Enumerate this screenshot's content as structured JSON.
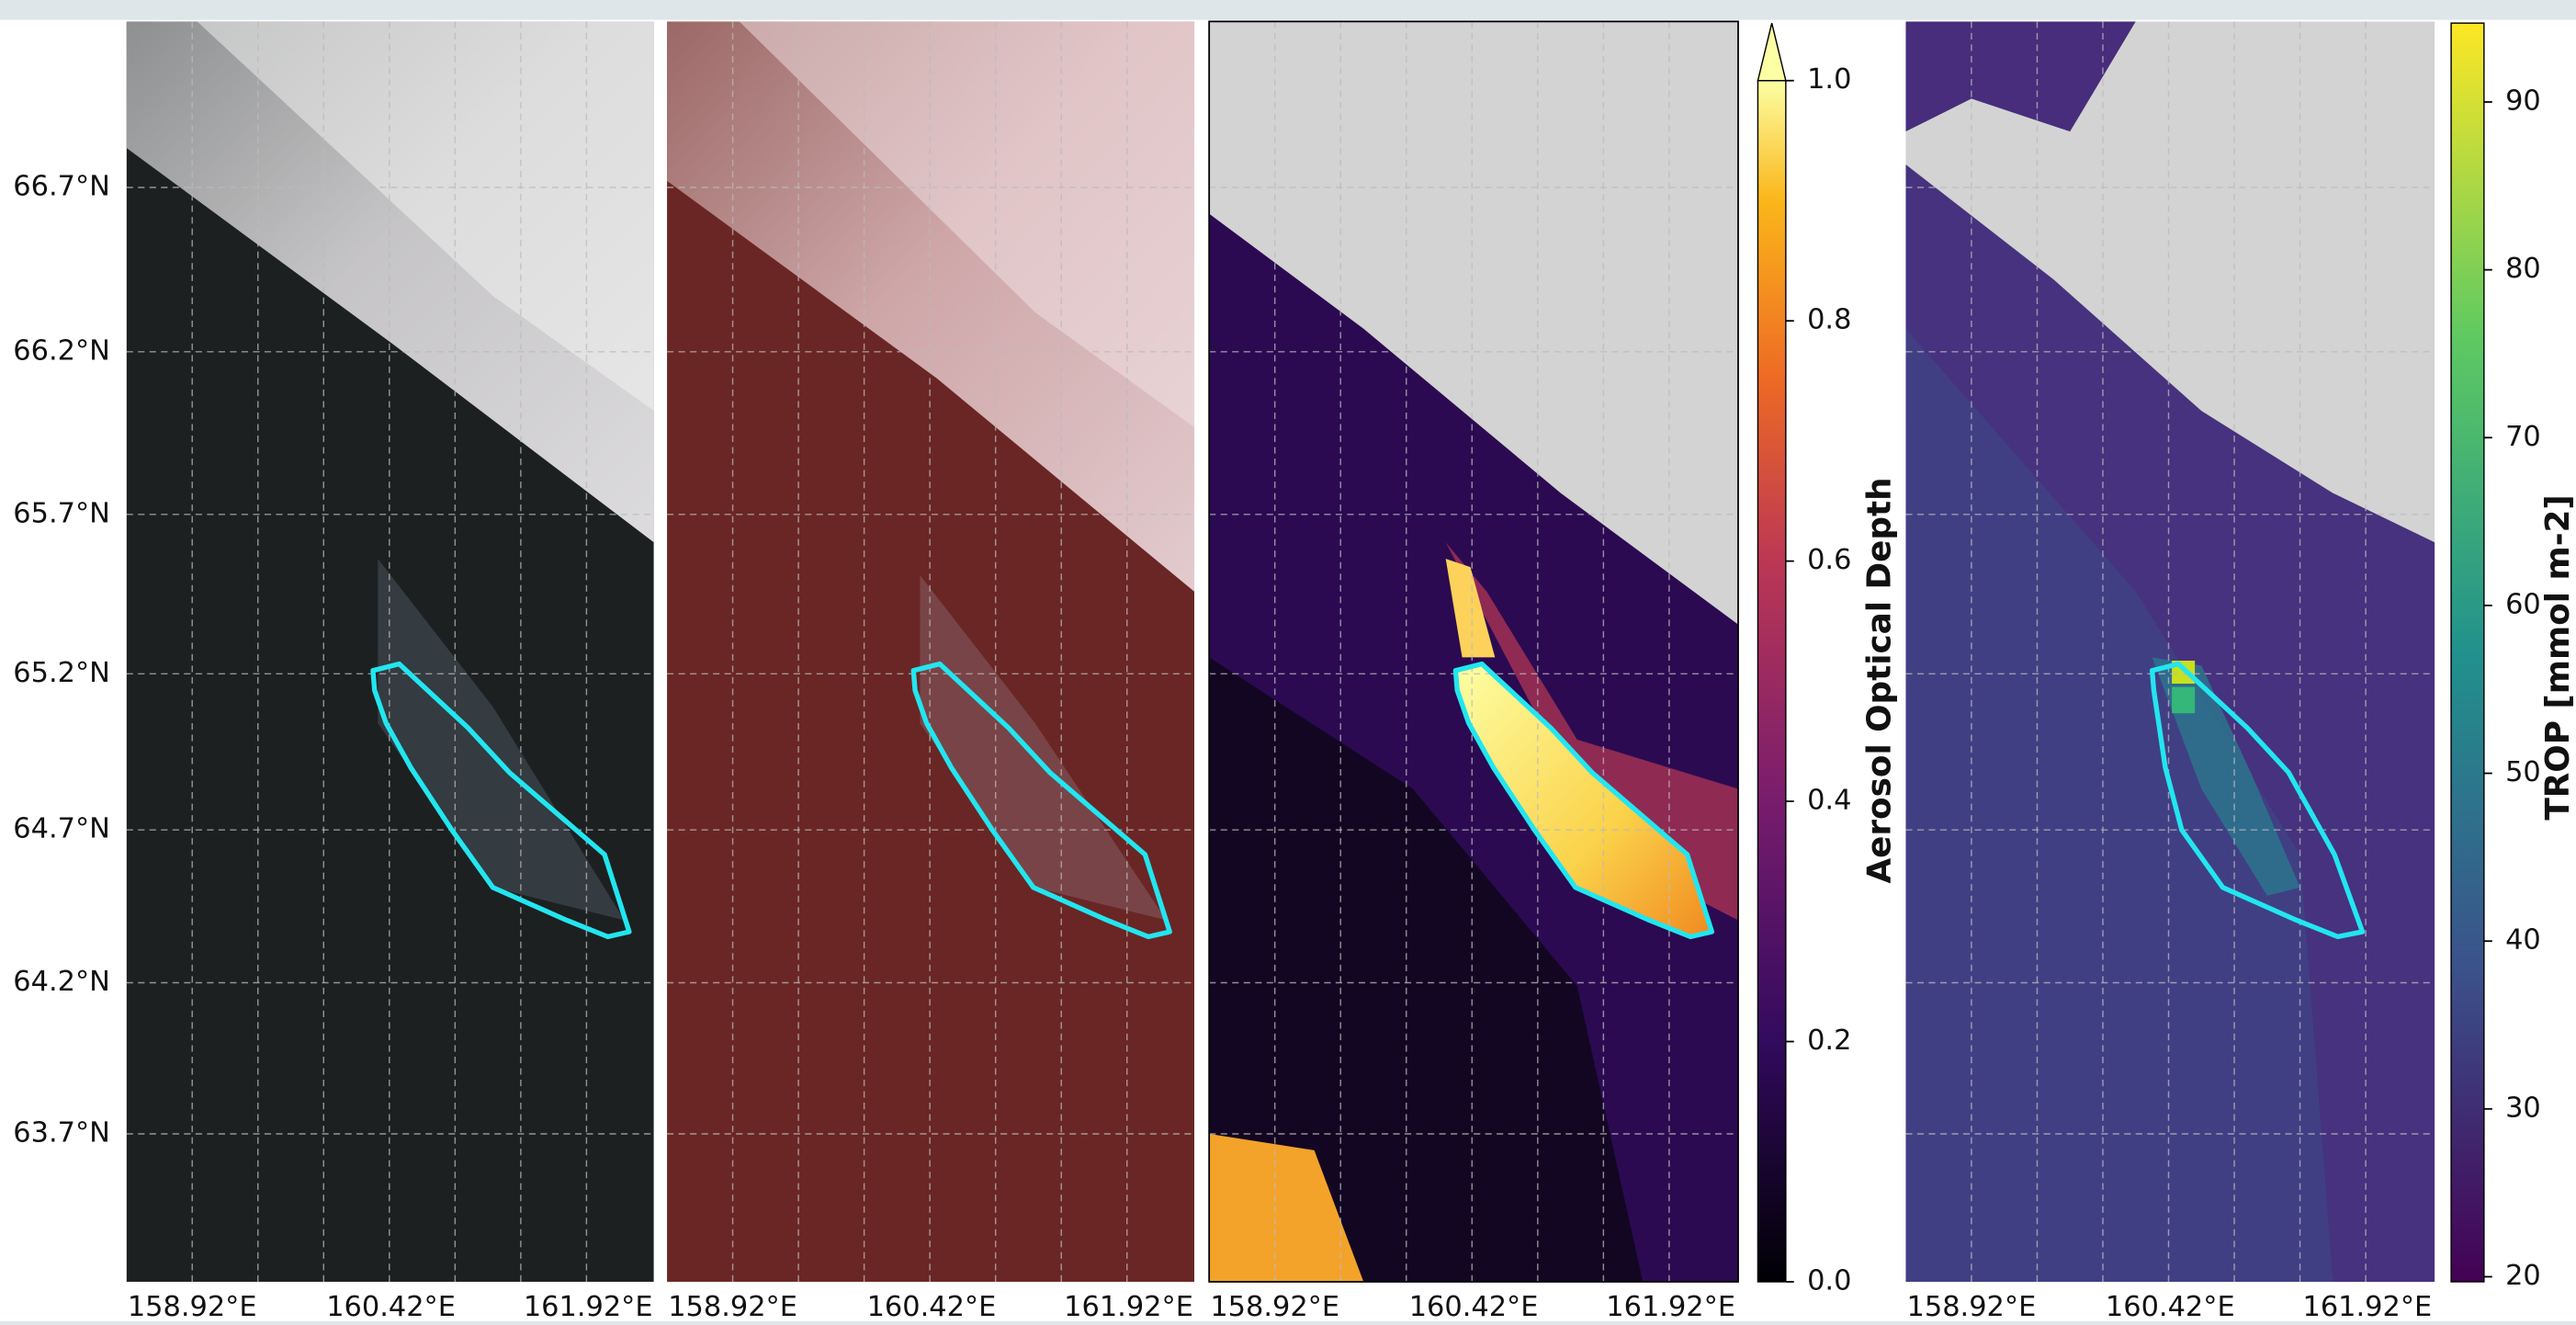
{
  "lat_ticks": [
    "66.7°N",
    "66.2°N",
    "65.7°N",
    "65.2°N",
    "64.7°N",
    "64.2°N",
    "63.7°N"
  ],
  "lon_ticks": [
    "158.92°E",
    "160.42°E",
    "161.92°E"
  ],
  "colorbars": [
    {
      "label": "Aerosol Optical Depth",
      "ylim": [
        0,
        1.0
      ],
      "ticks": [
        {
          "value": 0,
          "label": "0.0"
        },
        0.2,
        0.4,
        0.6,
        0.8,
        {
          "value": 1,
          "label": "1.0"
        }
      ]
    },
    {
      "label": "TROP [mmol m-2]",
      "ylim": [
        19.7,
        94.7
      ],
      "ticks": [
        20,
        30,
        40,
        50,
        60,
        70,
        80,
        90
      ]
    }
  ]
}
